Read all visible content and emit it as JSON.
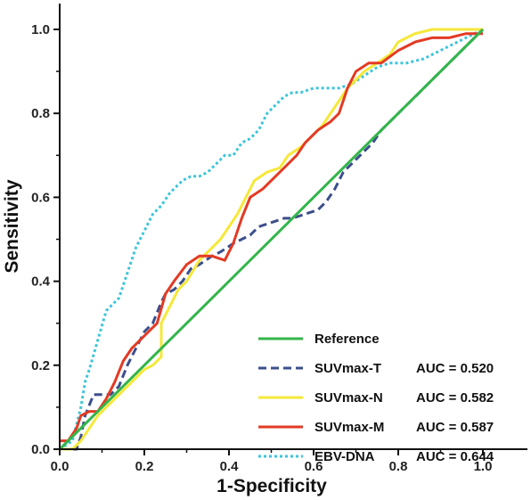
{
  "chart_data": {
    "type": "line",
    "title": "",
    "xlabel": "1-Specificity",
    "ylabel": "Sensitivity",
    "xlim": [
      0,
      1.1
    ],
    "ylim": [
      0,
      1.05
    ],
    "xticks": [
      "0.0",
      "0.2",
      "0.4",
      "0.6",
      "0.8",
      "1.0"
    ],
    "xtick_values": [
      0,
      0.2,
      0.4,
      0.6,
      0.8,
      1.0
    ],
    "yticks": [
      "0.0",
      "0.2",
      "0.4",
      "0.6",
      "0.8",
      "1.0"
    ],
    "ytick_values": [
      0,
      0.2,
      0.4,
      0.6,
      0.8,
      1.0
    ],
    "legend_position": "bottom-right",
    "grid": false,
    "series": [
      {
        "name": "Reference",
        "auc": "",
        "color": "#33b54a",
        "dash": "solid",
        "x": [
          0,
          1
        ],
        "y": [
          0,
          1
        ]
      },
      {
        "name": "SUVmax-T",
        "auc": "AUC = 0.520",
        "color": "#3c4f8c",
        "dash": "dash",
        "x": [
          0,
          0.04,
          0.05,
          0.06,
          0.08,
          0.09,
          0.12,
          0.14,
          0.16,
          0.18,
          0.19,
          0.2,
          0.22,
          0.24,
          0.25,
          0.27,
          0.29,
          0.31,
          0.33,
          0.36,
          0.38,
          0.41,
          0.43,
          0.45,
          0.47,
          0.5,
          0.53,
          0.55,
          0.58,
          0.61,
          0.63,
          0.65,
          0.67,
          0.7,
          0.72,
          0.74,
          0.76,
          0.79,
          0.82,
          0.85,
          0.88,
          0.91,
          0.94,
          0.97,
          1.0
        ],
        "y": [
          0,
          0,
          0.03,
          0.08,
          0.13,
          0.13,
          0.13,
          0.15,
          0.2,
          0.24,
          0.26,
          0.28,
          0.3,
          0.35,
          0.37,
          0.38,
          0.4,
          0.43,
          0.44,
          0.46,
          0.47,
          0.49,
          0.5,
          0.51,
          0.53,
          0.54,
          0.55,
          0.55,
          0.56,
          0.57,
          0.59,
          0.62,
          0.66,
          0.69,
          0.71,
          0.73,
          0.76,
          0.79,
          0.82,
          0.85,
          0.88,
          0.91,
          0.94,
          0.97,
          1.0
        ]
      },
      {
        "name": "SUVmax-N",
        "auc": "AUC = 0.582",
        "color": "#f5e839",
        "dash": "solid",
        "x": [
          0,
          0.03,
          0.05,
          0.07,
          0.09,
          0.11,
          0.13,
          0.15,
          0.18,
          0.2,
          0.22,
          0.24,
          0.24,
          0.26,
          0.28,
          0.3,
          0.33,
          0.36,
          0.38,
          0.4,
          0.42,
          0.44,
          0.46,
          0.49,
          0.52,
          0.54,
          0.57,
          0.6,
          0.62,
          0.64,
          0.66,
          0.68,
          0.7,
          0.72,
          0.75,
          0.78,
          0.8,
          0.84,
          0.88,
          0.92,
          0.96,
          1.0
        ],
        "y": [
          0,
          0,
          0.02,
          0.05,
          0.08,
          0.1,
          0.12,
          0.14,
          0.17,
          0.19,
          0.2,
          0.22,
          0.3,
          0.34,
          0.38,
          0.4,
          0.45,
          0.48,
          0.5,
          0.53,
          0.56,
          0.6,
          0.64,
          0.66,
          0.67,
          0.7,
          0.72,
          0.75,
          0.77,
          0.8,
          0.83,
          0.86,
          0.88,
          0.9,
          0.92,
          0.94,
          0.97,
          0.99,
          1.0,
          1.0,
          1.0,
          1.0
        ]
      },
      {
        "name": "SUVmax-M",
        "auc": "AUC = 0.587",
        "color": "#e33a24",
        "dash": "solid",
        "x": [
          0,
          0.02,
          0.04,
          0.05,
          0.07,
          0.09,
          0.11,
          0.13,
          0.15,
          0.17,
          0.19,
          0.21,
          0.23,
          0.25,
          0.27,
          0.3,
          0.33,
          0.36,
          0.39,
          0.41,
          0.43,
          0.45,
          0.48,
          0.5,
          0.53,
          0.56,
          0.58,
          0.61,
          0.64,
          0.66,
          0.68,
          0.7,
          0.73,
          0.76,
          0.8,
          0.84,
          0.88,
          0.92,
          0.96,
          1.0
        ],
        "y": [
          0.02,
          0.02,
          0.05,
          0.08,
          0.09,
          0.09,
          0.12,
          0.16,
          0.21,
          0.24,
          0.26,
          0.28,
          0.3,
          0.37,
          0.4,
          0.44,
          0.46,
          0.46,
          0.45,
          0.49,
          0.55,
          0.6,
          0.62,
          0.64,
          0.67,
          0.7,
          0.73,
          0.76,
          0.78,
          0.8,
          0.86,
          0.9,
          0.92,
          0.92,
          0.95,
          0.97,
          0.98,
          0.98,
          0.99,
          0.99
        ]
      },
      {
        "name": "EBV-DNA",
        "auc": "AUC = 0.644",
        "color": "#3cc5d8",
        "dash": "dot",
        "x": [
          0,
          0.03,
          0.05,
          0.06,
          0.07,
          0.09,
          0.11,
          0.14,
          0.16,
          0.18,
          0.2,
          0.22,
          0.24,
          0.26,
          0.29,
          0.31,
          0.33,
          0.35,
          0.37,
          0.39,
          0.41,
          0.43,
          0.45,
          0.47,
          0.49,
          0.51,
          0.53,
          0.55,
          0.57,
          0.6,
          0.63,
          0.66,
          0.69,
          0.72,
          0.75,
          0.78,
          0.82,
          0.86,
          0.9,
          0.94,
          0.98,
          1.0
        ],
        "y": [
          0,
          0.02,
          0.1,
          0.16,
          0.19,
          0.26,
          0.33,
          0.36,
          0.42,
          0.48,
          0.52,
          0.56,
          0.58,
          0.61,
          0.64,
          0.65,
          0.65,
          0.66,
          0.68,
          0.7,
          0.7,
          0.73,
          0.74,
          0.76,
          0.8,
          0.82,
          0.84,
          0.85,
          0.85,
          0.86,
          0.86,
          0.86,
          0.87,
          0.89,
          0.91,
          0.92,
          0.92,
          0.93,
          0.95,
          0.97,
          0.99,
          1.0
        ]
      }
    ]
  }
}
